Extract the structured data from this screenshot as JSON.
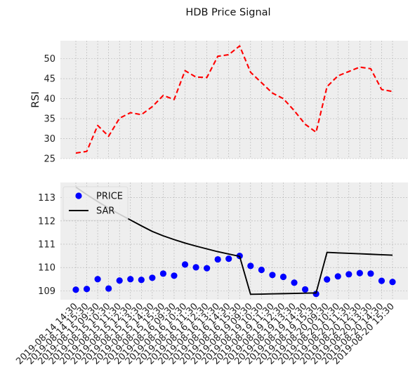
{
  "chart_data": {
    "title": "HDB Price Signal",
    "x_categories": [
      "2019-08-14 14:30",
      "2019-08-14 15:30",
      "2019-08-15 09:30",
      "2019-08-15 10:30",
      "2019-08-15 11:30",
      "2019-08-15 12:30",
      "2019-08-15 13:30",
      "2019-08-15 14:30",
      "2019-08-15 15:30",
      "2019-08-16 09:30",
      "2019-08-16 10:30",
      "2019-08-16 11:30",
      "2019-08-16 12:30",
      "2019-08-16 13:30",
      "2019-08-16 14:30",
      "2019-08-16 15:30",
      "2019-08-19 09:30",
      "2019-08-19 10:30",
      "2019-08-19 11:30",
      "2019-08-19 12:30",
      "2019-08-19 13:30",
      "2019-08-19 14:30",
      "2019-08-19 15:30",
      "2019-08-20 09:30",
      "2019-08-20 10:30",
      "2019-08-20 11:30",
      "2019-08-20 12:30",
      "2019-08-20 13:30",
      "2019-08-20 14:30",
      "2019-08-20 15:30"
    ],
    "charts": [
      {
        "type": "line",
        "ylabel": "RSI",
        "ylim": [
          25,
          54.5
        ],
        "yticks": [
          25,
          30,
          35,
          40,
          45,
          50
        ],
        "grid": true,
        "series": [
          {
            "name": "RSI",
            "color": "#ff0000",
            "style": "dashed",
            "values": [
              26.4,
              26.8,
              33.3,
              30.6,
              35.1,
              36.5,
              36.0,
              38.0,
              40.8,
              39.8,
              47.0,
              45.4,
              45.3,
              50.6,
              51.0,
              53.2,
              46.6,
              44.0,
              41.4,
              40.0,
              37.0,
              33.6,
              31.6,
              43.0,
              45.7,
              46.8,
              47.9,
              47.5,
              42.3,
              41.8
            ]
          }
        ]
      },
      {
        "type": "line",
        "ylabel": "",
        "ylim": [
          108.62,
          113.65
        ],
        "yticks": [
          109,
          110,
          111,
          112,
          113
        ],
        "grid": true,
        "legend": "top-left",
        "series": [
          {
            "name": "PRICE",
            "color": "#0000ff",
            "style": "markers",
            "values": [
              109.05,
              109.08,
              109.5,
              109.1,
              109.44,
              109.5,
              109.47,
              109.56,
              109.74,
              109.65,
              110.13,
              110.01,
              109.97,
              110.35,
              110.38,
              110.5,
              110.07,
              109.9,
              109.68,
              109.6,
              109.35,
              109.06,
              108.87,
              109.49,
              109.62,
              109.71,
              109.76,
              109.74,
              109.43,
              109.38
            ]
          },
          {
            "name": "SAR",
            "color": "#000000",
            "style": "solid",
            "values": [
              113.45,
              113.13,
              112.83,
              112.55,
              112.29,
              112.04,
              111.79,
              111.55,
              111.36,
              111.2,
              111.05,
              110.92,
              110.8,
              110.68,
              110.58,
              110.48,
              108.85,
              108.86,
              108.87,
              108.88,
              108.89,
              108.9,
              108.91,
              110.65,
              110.63,
              110.61,
              110.59,
              110.57,
              110.55,
              110.53
            ]
          }
        ]
      }
    ]
  }
}
